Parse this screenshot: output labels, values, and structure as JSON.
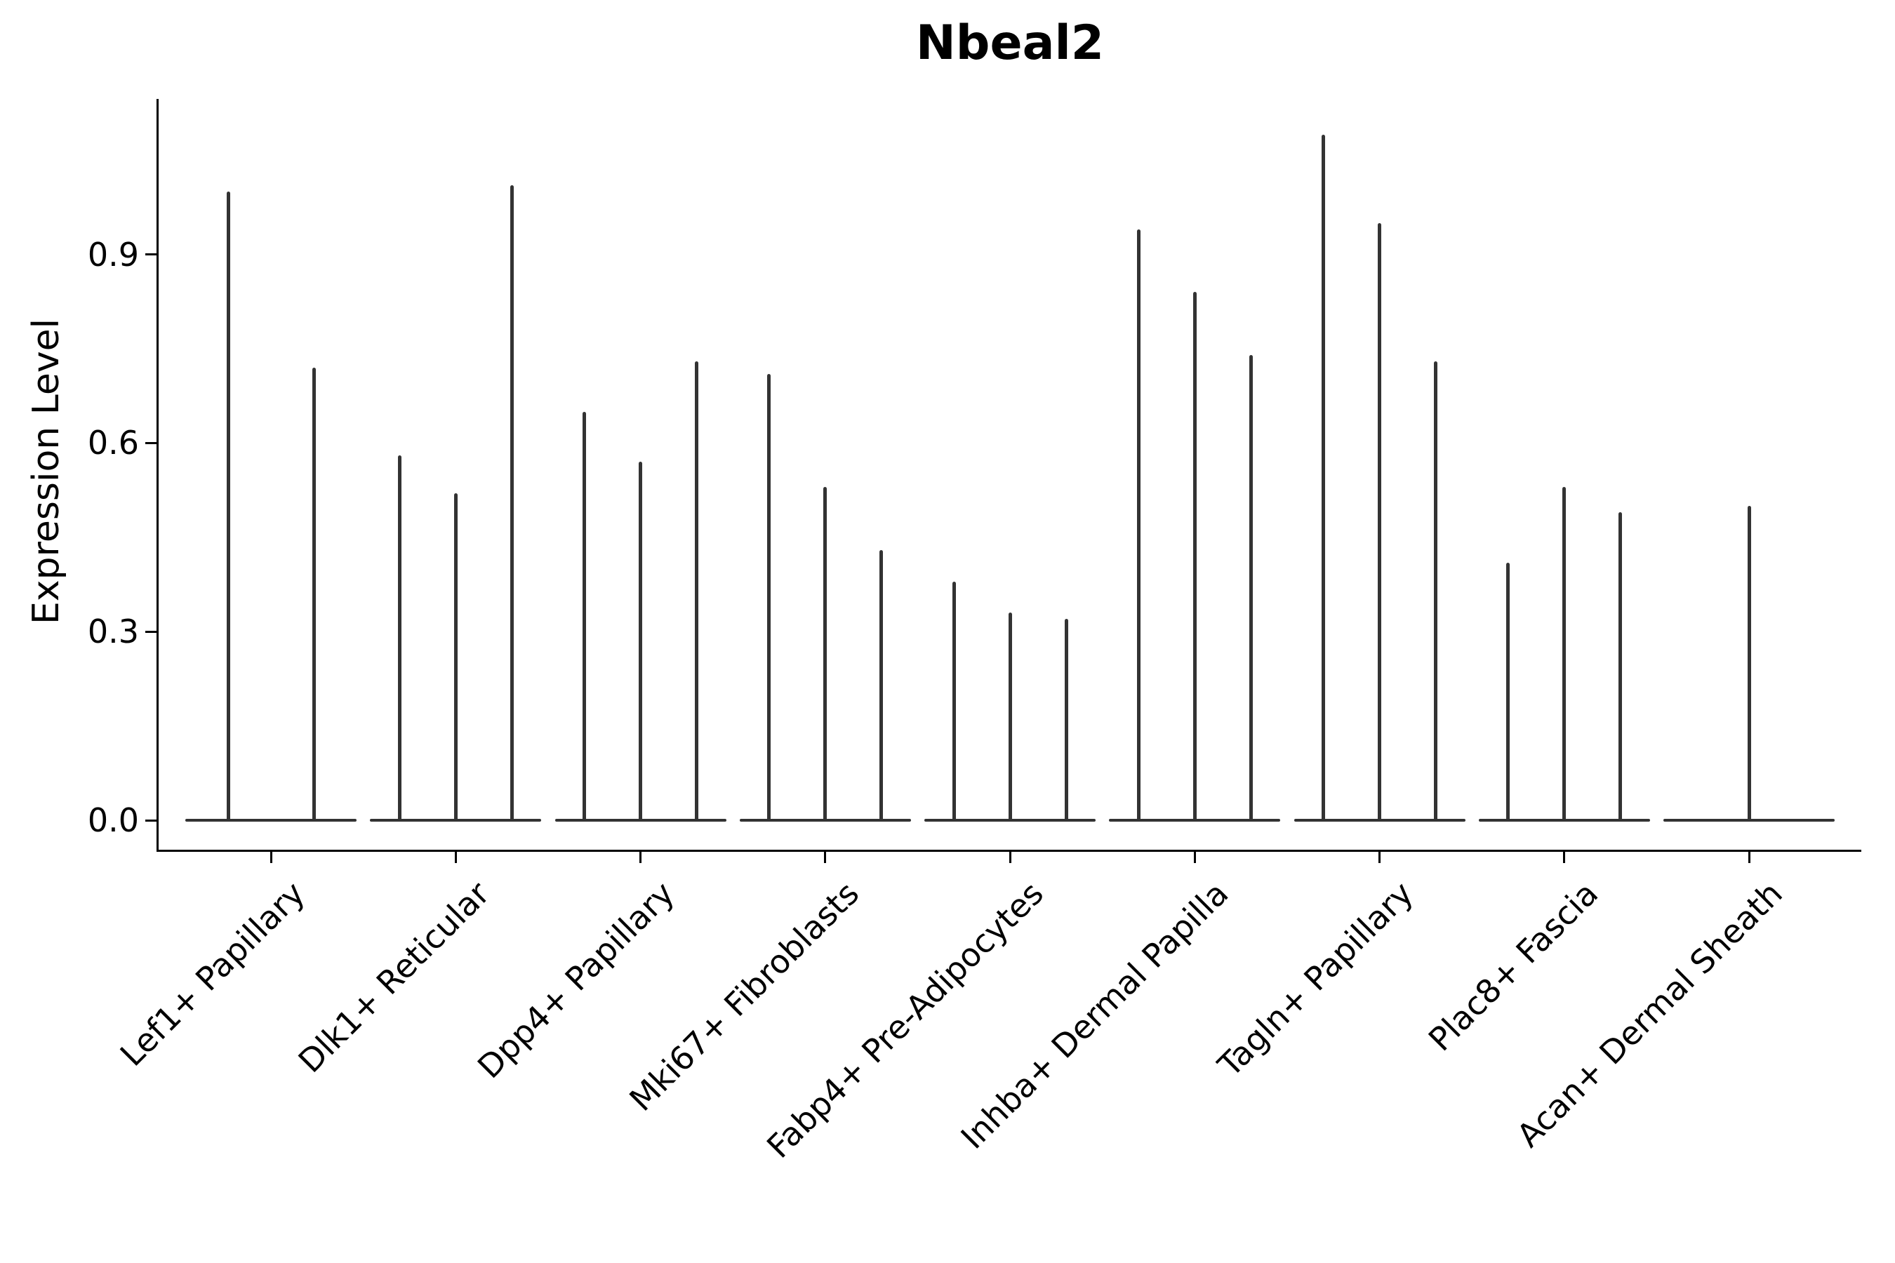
{
  "figure": {
    "title": "Nbeal2",
    "ylabel": "Expression Level"
  },
  "colors": {
    "violin": "#333333",
    "axis": "#000000",
    "background": "#ffffff"
  },
  "chart_data": {
    "type": "violin",
    "title": "Nbeal2",
    "xlabel": "",
    "ylabel": "Expression Level",
    "ylim": [
      -0.05,
      1.15
    ],
    "grid": false,
    "legend": false,
    "yticks": [
      0.9,
      0.6,
      0.3,
      0.0
    ],
    "ytick_labels": [
      "0.9",
      "0.6",
      "0.3",
      "0.0"
    ],
    "categories": [
      "Lef1+ Papillary",
      "Dlk1+ Reticular",
      "Dpp4+ Papillary",
      "Mki67+ Fibroblasts",
      "Fabp4+ Pre-Adipocytes",
      "Inhba+ Dermal Papilla",
      "Tagln+ Papillary",
      "Plac8+ Fascia",
      "Acan+ Dermal Sheath"
    ],
    "series": [
      {
        "category": "Lef1+ Papillary",
        "n_violins": 2,
        "peak_expression": [
          1.0,
          0.72
        ]
      },
      {
        "category": "Dlk1+ Reticular",
        "n_violins": 3,
        "peak_expression": [
          0.58,
          0.52,
          1.01
        ]
      },
      {
        "category": "Dpp4+ Papillary",
        "n_violins": 3,
        "peak_expression": [
          0.65,
          0.57,
          0.73
        ]
      },
      {
        "category": "Mki67+ Fibroblasts",
        "n_violins": 3,
        "peak_expression": [
          0.71,
          0.53,
          0.43
        ]
      },
      {
        "category": "Fabp4+ Pre-Adipocytes",
        "n_violins": 3,
        "peak_expression": [
          0.38,
          0.33,
          0.32
        ]
      },
      {
        "category": "Inhba+ Dermal Papilla",
        "n_violins": 3,
        "peak_expression": [
          0.94,
          0.84,
          0.74
        ]
      },
      {
        "category": "Tagln+ Papillary",
        "n_violins": 3,
        "peak_expression": [
          1.09,
          0.95,
          0.73
        ]
      },
      {
        "category": "Plac8+ Fascia",
        "n_violins": 3,
        "peak_expression": [
          0.41,
          0.53,
          0.49
        ]
      },
      {
        "category": "Acan+ Dermal Sheath",
        "n_violins": 1,
        "peak_expression": [
          0.5
        ]
      }
    ],
    "description": "Each category shows thin needle violins: a flat density base at expression 0 with narrow spikes reaching the listed peak expression values."
  }
}
